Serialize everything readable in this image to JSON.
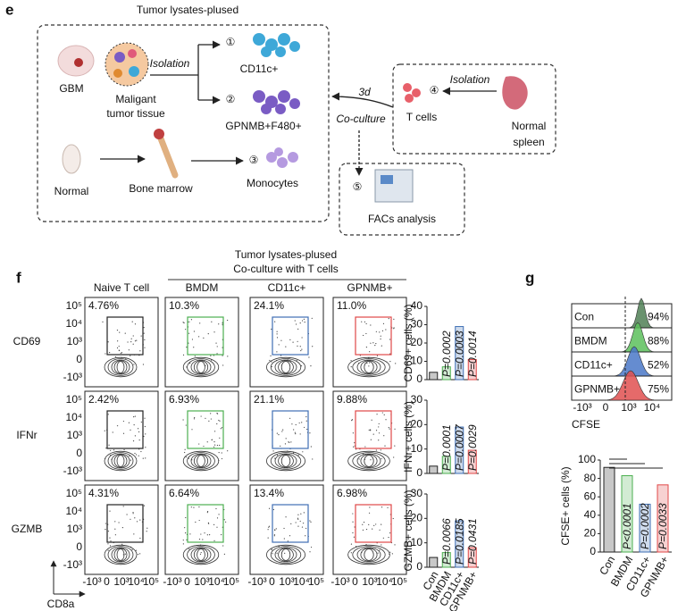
{
  "e": {
    "label": "e",
    "title": "Tumor lysates-plused",
    "gbm": "GBM",
    "isolation_1": "Isolation",
    "tissue": [
      "Maligant",
      "tumor tissue"
    ],
    "branch_1": {
      "step": "①",
      "label": "CD11c+"
    },
    "branch_2": {
      "step": "②",
      "label": "GPNMB+F480+"
    },
    "normal": "Normal",
    "bone_marrow": "Bone marrow",
    "branch_3": {
      "step": "③",
      "label": "Monocytes"
    },
    "days": "3d",
    "coculture": "Co-culture",
    "tcells": {
      "step": "④",
      "label": "T cells"
    },
    "isolation_2": "Isolation",
    "spleen": [
      "Normal",
      "spleen"
    ],
    "facs": {
      "step": "⑤",
      "label": "FACs analysis"
    }
  },
  "f": {
    "label": "f",
    "header": [
      "Tumor lysates-plused",
      "Co-culture with T cells"
    ],
    "columns": [
      "Naive T cell",
      "BMDM",
      "CD11c+",
      "GPNMB+"
    ],
    "gate_colors": [
      "#222222",
      "#4caf50",
      "#3f6fb5",
      "#e04848"
    ],
    "rows": [
      {
        "name": "CD69",
        "percents": [
          "4.76%",
          "10.3%",
          "24.1%",
          "11.0%"
        ]
      },
      {
        "name": "IFNr",
        "percents": [
          "2.42%",
          "6.93%",
          "21.1%",
          "9.88%"
        ]
      },
      {
        "name": "GZMB",
        "percents": [
          "4.31%",
          "6.64%",
          "13.4%",
          "6.98%"
        ]
      }
    ],
    "yticks": [
      "10⁵",
      "10⁴",
      "10³",
      "0",
      "-10³"
    ],
    "xticks": [
      "-10³",
      "0",
      "10³",
      "10⁴",
      "10⁵"
    ],
    "xlabel": "CD8a",
    "categories": [
      "Con",
      "BMDM",
      "CD11c+",
      "GPNMB+"
    ],
    "colors": [
      "#222222",
      "#4caf50",
      "#3f6fb5",
      "#e04848"
    ],
    "bars": [
      {
        "ylabel": "CD69+ cells (%)",
        "ylim": [
          0,
          40
        ],
        "yticks": [
          0,
          10,
          20,
          30,
          40
        ],
        "values": [
          4,
          7,
          29,
          11
        ],
        "pvalues": [
          "P=0.0002",
          "P=0.0003",
          "P=0.0014"
        ]
      },
      {
        "ylabel": "IFNr+ cells (%)",
        "ylim": [
          0,
          30
        ],
        "yticks": [
          0,
          10,
          20,
          30
        ],
        "values": [
          3,
          7,
          19,
          9.5
        ],
        "pvalues": [
          "P=0.0001",
          "P=0.0007",
          "P=0.0029"
        ]
      },
      {
        "ylabel": "GZMB+ cells (%)",
        "ylim": [
          0,
          30
        ],
        "yticks": [
          0,
          10,
          20,
          30
        ],
        "values": [
          4,
          6,
          19,
          8
        ],
        "pvalues": [
          "P=0.0066",
          "P=0.0185",
          "P=0.0431"
        ]
      }
    ]
  },
  "g": {
    "label": "g",
    "histograms": [
      {
        "name": "Con",
        "percent": "94%",
        "color": "#4f7f55"
      },
      {
        "name": "BMDM",
        "percent": "88%",
        "color": "#5cbf5c"
      },
      {
        "name": "CD11c+",
        "percent": "52%",
        "color": "#4a78c8"
      },
      {
        "name": "GPNMB+",
        "percent": "75%",
        "color": "#e05050"
      }
    ],
    "xticks": [
      "-10³",
      "0",
      "10³",
      "10⁴"
    ],
    "xlabel": "CFSE",
    "categories": [
      "Con",
      "BMDM",
      "CD11c+",
      "GPNMB+"
    ],
    "colors": [
      "#222222",
      "#4caf50",
      "#3f6fb5",
      "#e04848"
    ],
    "bar": {
      "ylabel": "CFSE+ cells (%)",
      "ylim": [
        0,
        100
      ],
      "yticks": [
        0,
        20,
        40,
        60,
        80,
        100
      ],
      "values": [
        92,
        83,
        52,
        73
      ],
      "pvalues": [
        "P<0.0001",
        "P=0.0002",
        "P=0.0033"
      ]
    }
  }
}
